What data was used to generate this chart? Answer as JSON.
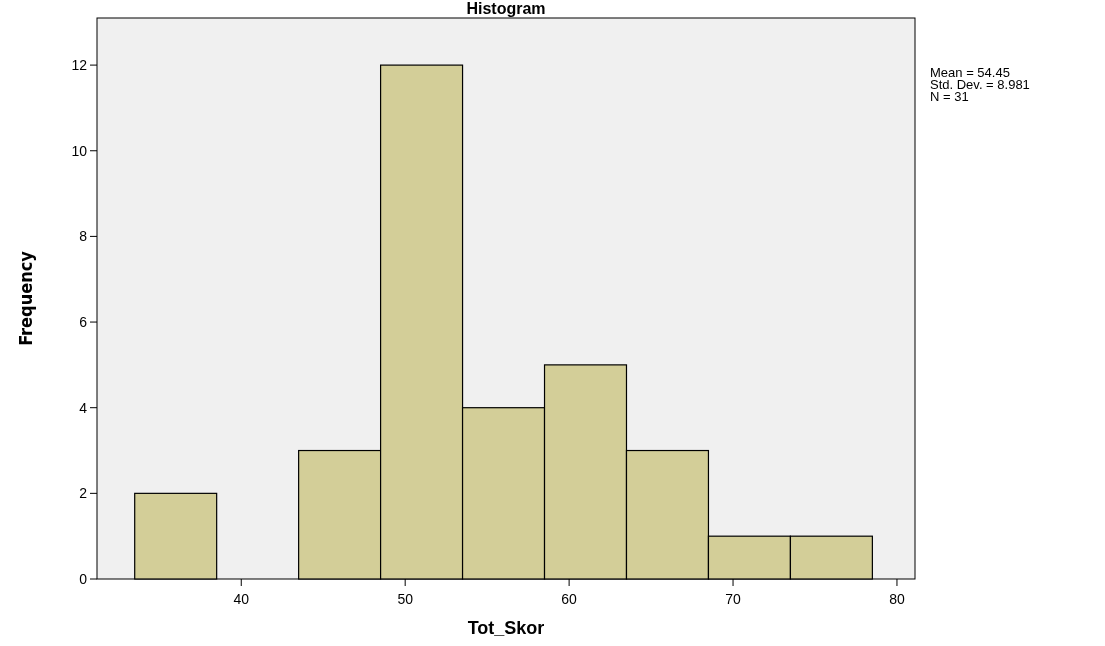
{
  "chart_data": {
    "type": "histogram",
    "title": "Histogram",
    "xlabel": "Tot_Skor",
    "ylabel": "Frequency",
    "bins": [
      33.5,
      38.5,
      43.5,
      48.5,
      53.5,
      58.5,
      63.5,
      68.5,
      73.5,
      78.5
    ],
    "values": [
      2,
      0,
      3,
      12,
      4,
      5,
      3,
      1,
      1
    ],
    "color": "#d3ce98",
    "xlim": [
      31.2,
      81.1
    ],
    "xticks": [
      40,
      50,
      60,
      70,
      80
    ],
    "ylim": [
      0,
      13.1
    ],
    "yticks": [
      0,
      2,
      4,
      6,
      8,
      10,
      12
    ],
    "grid": false,
    "annotations": [
      "Mean = 54.45",
      "Std. Dev. = 8.981",
      "N = 31"
    ]
  }
}
